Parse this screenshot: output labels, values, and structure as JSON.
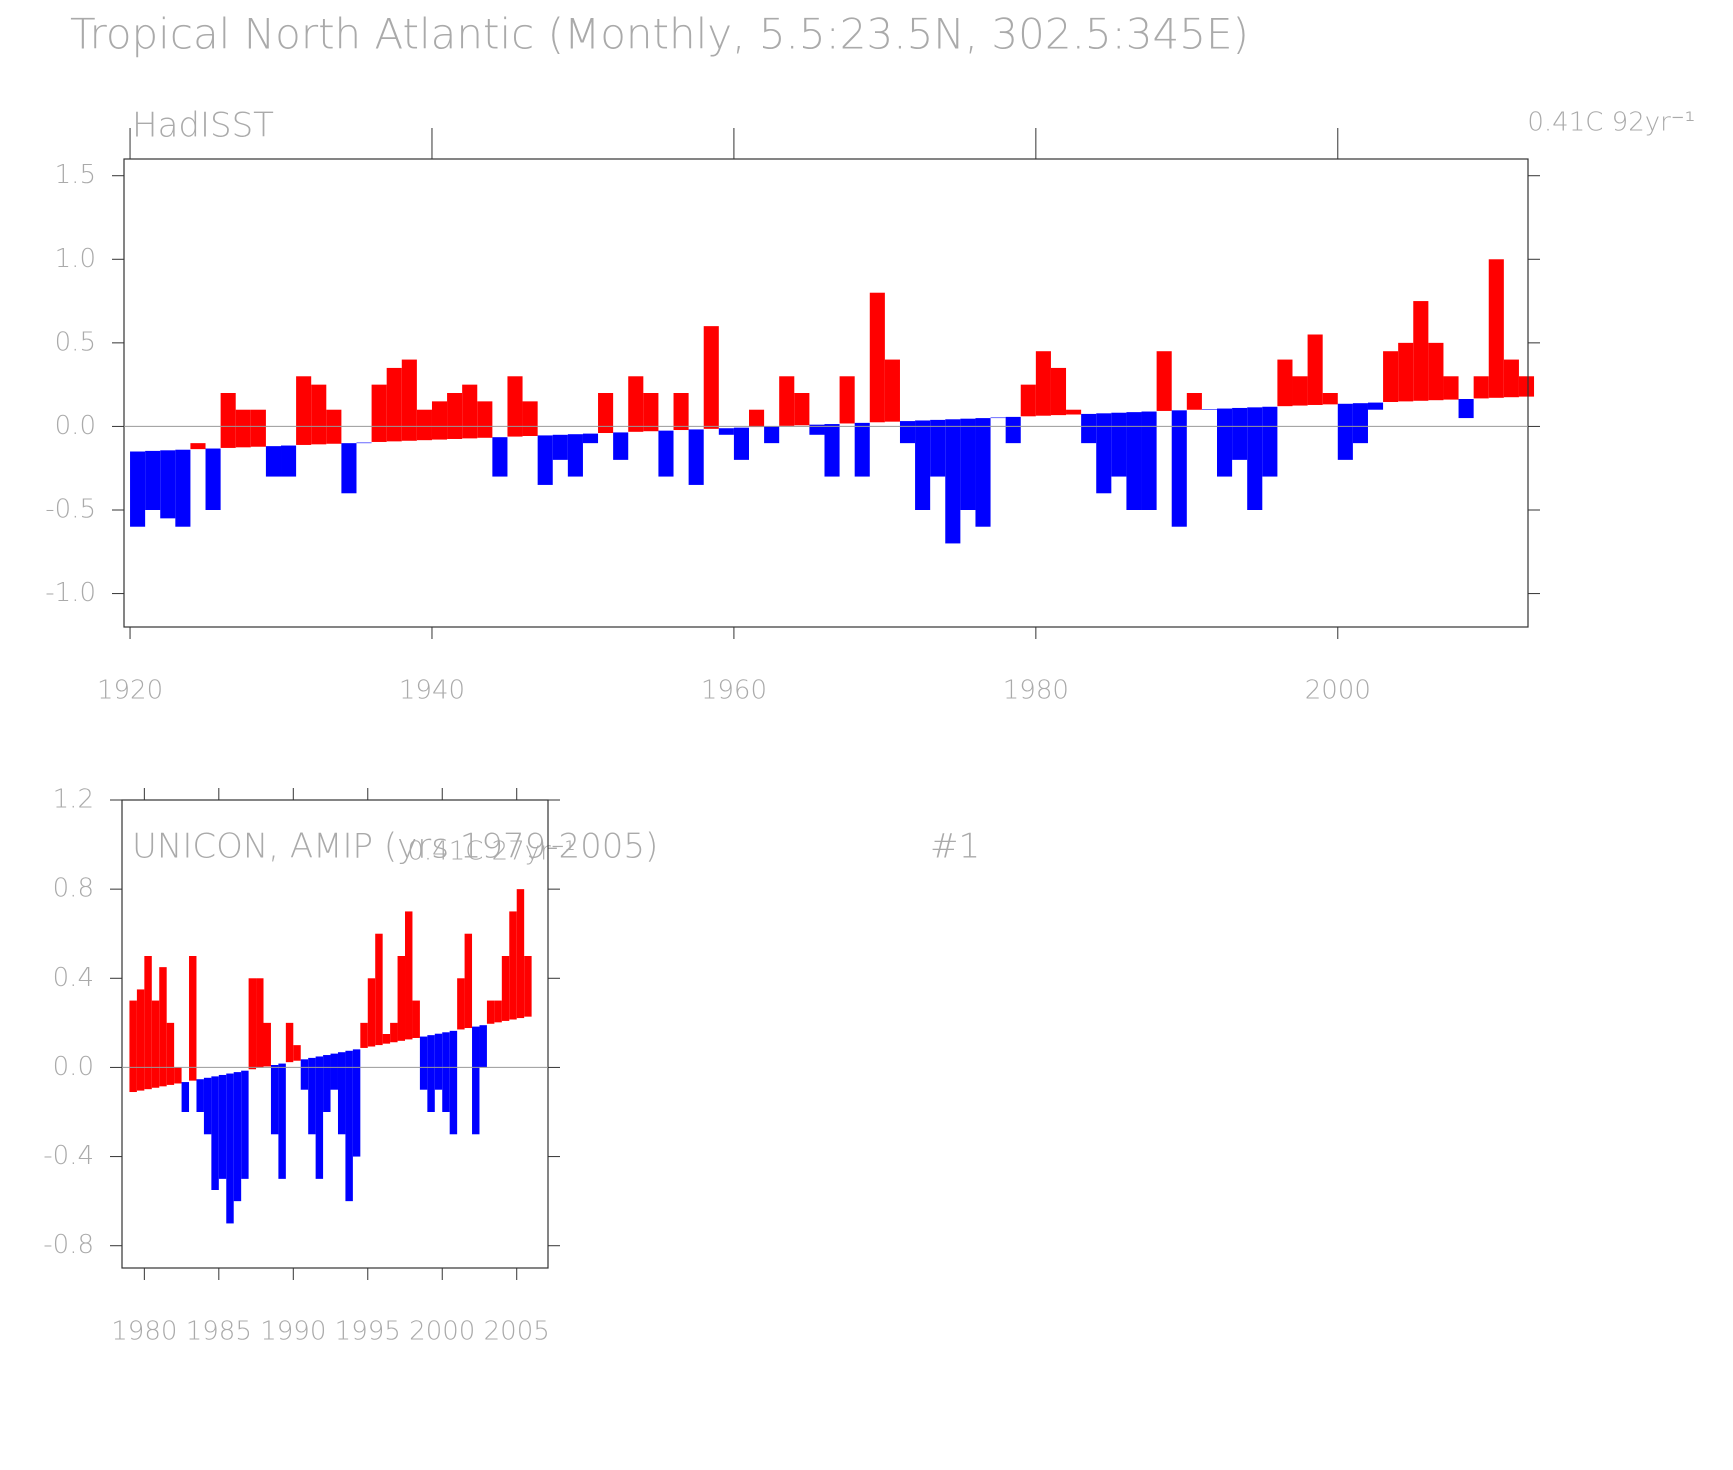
{
  "chart_data": [
    {
      "type": "bar",
      "title": "Tropical North Atlantic (Monthly, 5.5:23.5N, 302.5:345E)",
      "subtitle": "HadISST",
      "annotation": "0.41C 92yr⁻¹",
      "x": [
        1920,
        1921,
        1922,
        1923,
        1924,
        1925,
        1926,
        1927,
        1928,
        1929,
        1930,
        1931,
        1932,
        1933,
        1934,
        1935,
        1936,
        1937,
        1938,
        1939,
        1940,
        1941,
        1942,
        1943,
        1944,
        1945,
        1946,
        1947,
        1948,
        1949,
        1950,
        1951,
        1952,
        1953,
        1954,
        1955,
        1956,
        1957,
        1958,
        1959,
        1960,
        1961,
        1962,
        1963,
        1964,
        1965,
        1966,
        1967,
        1968,
        1969,
        1970,
        1971,
        1972,
        1973,
        1974,
        1975,
        1976,
        1977,
        1978,
        1979,
        1980,
        1981,
        1982,
        1983,
        1984,
        1985,
        1986,
        1987,
        1988,
        1989,
        1990,
        1991,
        1992,
        1993,
        1994,
        1995,
        1996,
        1997,
        1998,
        1999,
        2000,
        2001,
        2002,
        2003,
        2004,
        2005,
        2006,
        2007,
        2008,
        2009,
        2010,
        2011,
        2012
      ],
      "values": [
        -0.6,
        -0.5,
        -0.55,
        -0.6,
        -0.1,
        -0.5,
        0.2,
        0.1,
        0.1,
        -0.3,
        -0.3,
        0.3,
        0.25,
        0.1,
        -0.4,
        -0.1,
        0.25,
        0.35,
        0.4,
        0.1,
        0.15,
        0.2,
        0.25,
        0.15,
        -0.3,
        0.3,
        0.15,
        -0.35,
        -0.2,
        -0.3,
        -0.1,
        0.2,
        -0.2,
        0.3,
        0.2,
        -0.3,
        0.2,
        -0.35,
        0.6,
        -0.05,
        -0.2,
        0.1,
        -0.1,
        0.3,
        0.2,
        -0.05,
        -0.3,
        0.3,
        -0.3,
        0.8,
        0.4,
        -0.1,
        -0.5,
        -0.3,
        -0.7,
        -0.5,
        -0.6,
        0.05,
        -0.1,
        0.25,
        0.45,
        0.35,
        0.1,
        -0.1,
        -0.4,
        -0.3,
        -0.5,
        -0.5,
        0.45,
        -0.6,
        0.2,
        0.1,
        -0.3,
        -0.2,
        -0.5,
        -0.3,
        0.4,
        0.3,
        0.55,
        0.2,
        -0.2,
        -0.1,
        0.1,
        0.45,
        0.5,
        0.75,
        0.5,
        0.3,
        0.05,
        0.3,
        1.0,
        0.4,
        0.3
      ],
      "color_above": "#ff0000",
      "color_below": "#0000ff",
      "xlim": [
        1919.6,
        2012.6
      ],
      "xticks": [
        1920,
        1940,
        1960,
        1980,
        2000
      ],
      "ylim": [
        -1.2,
        1.6
      ],
      "yticks": [
        {
          "value": -1,
          "label": "-1.0"
        },
        -0.5,
        {
          "value": 0,
          "label": "0.0"
        },
        0.5,
        {
          "value": 1,
          "label": "1.0"
        },
        1.5
      ]
    },
    {
      "type": "bar",
      "subtitle": "UNICON, AMIP (yrs 1979-2005)",
      "label": "#1",
      "annotation": "0.41C 27yr⁻¹",
      "x": [
        1979,
        1979.5,
        1980,
        1980.5,
        1981,
        1981.5,
        1982,
        1982.5,
        1983,
        1983.5,
        1984,
        1984.5,
        1985,
        1985.5,
        1986,
        1986.5,
        1987,
        1987.5,
        1988,
        1988.5,
        1989,
        1989.5,
        1990,
        1990.5,
        1991,
        1991.5,
        1992,
        1992.5,
        1993,
        1993.5,
        1994,
        1994.5,
        1995,
        1995.5,
        1996,
        1996.5,
        1997,
        1997.5,
        1998,
        1998.5,
        1999,
        1999.5,
        2000,
        2000.5,
        2001,
        2001.5,
        2002,
        2002.5,
        2003,
        2003.5,
        2004,
        2004.5,
        2005,
        2005.5
      ],
      "values": [
        0.3,
        0.35,
        0.5,
        0.3,
        0.45,
        0.2,
        0.0,
        -0.2,
        0.5,
        -0.2,
        -0.3,
        -0.55,
        -0.5,
        -0.7,
        -0.6,
        -0.5,
        0.4,
        0.4,
        0.2,
        -0.3,
        -0.5,
        0.2,
        0.1,
        -0.1,
        -0.3,
        -0.5,
        -0.2,
        -0.1,
        -0.3,
        -0.6,
        -0.4,
        0.2,
        0.4,
        0.6,
        0.15,
        0.2,
        0.5,
        0.7,
        0.3,
        -0.1,
        -0.2,
        -0.1,
        -0.2,
        -0.3,
        0.4,
        0.6,
        -0.3,
        0.0,
        0.3,
        0.3,
        0.5,
        0.7,
        0.8,
        0.5
      ],
      "color_above": "#ff0000",
      "color_below": "#0000ff",
      "xlim": [
        1978.5,
        2007.1
      ],
      "xticks": [
        1980,
        1985,
        1990,
        1995,
        2000,
        2005
      ],
      "ylim": [
        -0.9,
        1.2
      ],
      "yticks": [
        -0.8,
        -0.4,
        {
          "value": 0,
          "label": "0.0"
        },
        0.4,
        0.8,
        1.2
      ]
    }
  ]
}
